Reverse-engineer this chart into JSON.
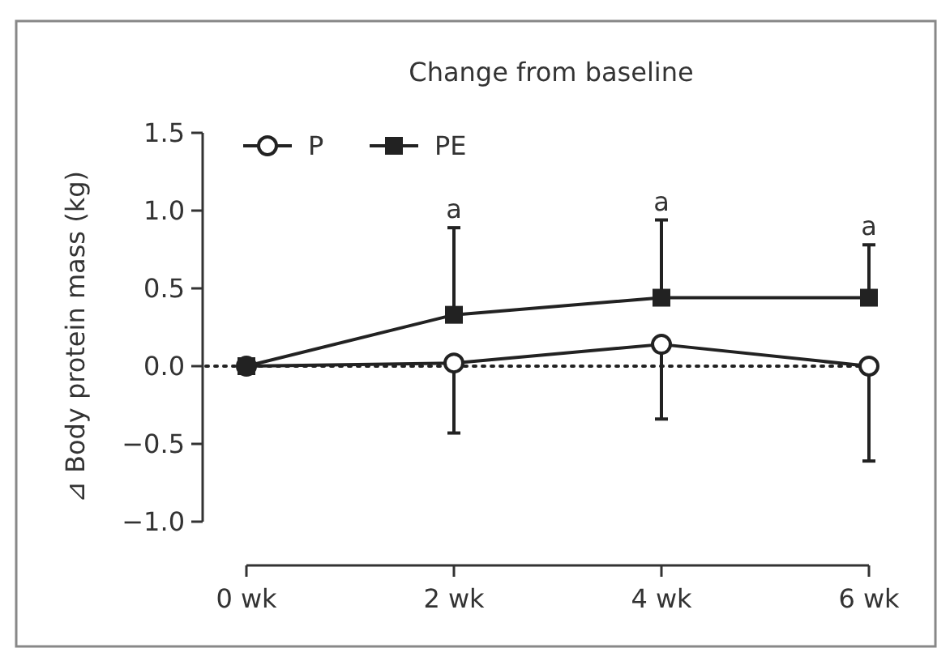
{
  "chart_data": {
    "type": "line",
    "title": "Change from baseline",
    "ylabel": "⊿ Body protein mass (kg)",
    "categories": [
      "0 wk",
      "2 wk",
      "4 wk",
      "6 wk"
    ],
    "series": [
      {
        "name": "P",
        "color": "#222222",
        "marker": "circle",
        "values": [
          0,
          0.02,
          0.14,
          0
        ],
        "errors": [
          null,
          [
            -0.43,
            0.02
          ],
          [
            -0.34,
            0.14
          ],
          [
            -0.61,
            0
          ]
        ]
      },
      {
        "name": "PE",
        "color": "#222222",
        "marker": "square",
        "values": [
          0,
          0.33,
          0.44,
          0.44
        ],
        "errors": [
          null,
          [
            0.33,
            0.89
          ],
          [
            0.44,
            0.94
          ],
          [
            0.44,
            0.78
          ]
        ]
      }
    ],
    "ylim": [
      -1.0,
      1.5
    ],
    "yticks": [
      {
        "value": -1.0,
        "label": "−1.0"
      },
      {
        "value": -0.5,
        "label": "−0.5"
      },
      {
        "value": 0,
        "label": "0.0"
      },
      {
        "value": 0.5,
        "label": "0.5"
      },
      {
        "value": 1.0,
        "label": "1.0"
      },
      {
        "value": 1.5,
        "label": "1.5"
      }
    ],
    "ref_lines": [
      {
        "axis": "y",
        "value": 0,
        "line_style": "dotted",
        "color": "#222222"
      }
    ],
    "annotations": [
      {
        "text": "a",
        "x": "2 wk",
        "y": 0.89
      },
      {
        "text": "a",
        "x": "4 wk",
        "y": 0.94
      },
      {
        "text": "a",
        "x": "6 wk",
        "y": 0.78
      }
    ],
    "legend": "top left",
    "grid": false
  }
}
